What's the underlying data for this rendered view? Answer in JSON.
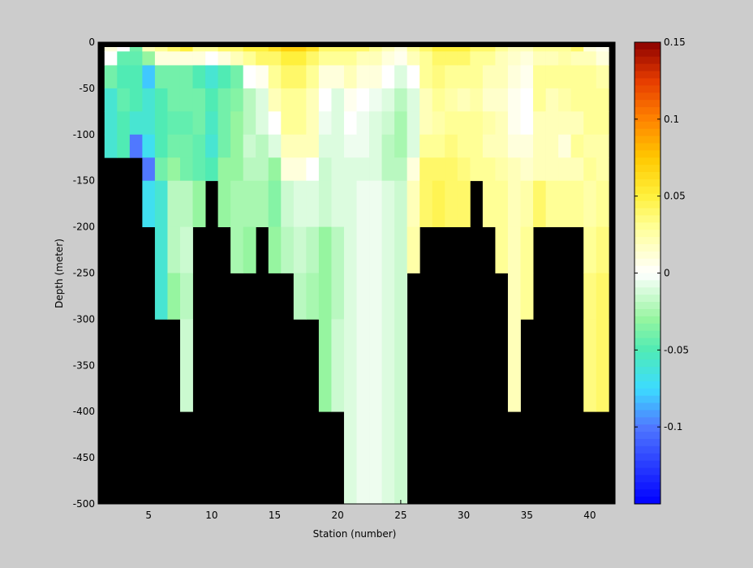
{
  "chart_data": {
    "type": "heatmap",
    "xlabel": "Station (number)",
    "ylabel": "Depth (meter)",
    "x_ticks": [
      5,
      10,
      15,
      20,
      25,
      30,
      35,
      40
    ],
    "y_ticks": [
      0,
      -50,
      -100,
      -150,
      -200,
      -250,
      -300,
      -350,
      -400,
      -450,
      -500
    ],
    "xlim": [
      1,
      42
    ],
    "ylim": [
      -500,
      0
    ],
    "colorbar": {
      "range": [
        -0.15,
        0.15
      ],
      "ticks": [
        "0.15",
        "0.1",
        "0.05",
        "0",
        "-0.05",
        "-0.1"
      ],
      "colormap": "blue-cyan-green-white-yellow-orange-red"
    },
    "no_data_color": "#000000",
    "stations": [
      2,
      3,
      4,
      5,
      6,
      7,
      8,
      9,
      10,
      11,
      12,
      13,
      14,
      15,
      16,
      17,
      18,
      19,
      20,
      21,
      22,
      23,
      24,
      25,
      26,
      27,
      28,
      29,
      30,
      31,
      32,
      33,
      34,
      35,
      36,
      37,
      38,
      39,
      40,
      41
    ],
    "station_max_depth": [
      -125,
      -125,
      -125,
      -200,
      -300,
      -300,
      -400,
      -200,
      -150,
      -200,
      -250,
      -250,
      -200,
      -250,
      -250,
      -300,
      -300,
      -400,
      -400,
      -500,
      -500,
      -500,
      -500,
      -500,
      -250,
      -200,
      -200,
      -200,
      -200,
      -150,
      -200,
      -250,
      -400,
      -300,
      -200,
      -200,
      -200,
      -200,
      -400,
      -400
    ],
    "depth_bins": [
      0,
      -10,
      -25,
      -50,
      -75,
      -100,
      -125,
      -150,
      -200,
      -250,
      -300,
      -400,
      -500
    ],
    "values": [
      [
        0.01,
        0.0,
        -0.04,
        -0.06,
        -0.06,
        -0.06,
        -0.075
      ],
      [
        0.0,
        -0.045,
        -0.05,
        -0.045,
        -0.05,
        -0.05,
        -0.1
      ],
      [
        -0.04,
        -0.045,
        -0.05,
        -0.05,
        -0.06,
        -0.1,
        -0.12
      ],
      [
        0.02,
        -0.03,
        -0.08,
        -0.06,
        -0.06,
        -0.07,
        -0.1,
        -0.07
      ],
      [
        0.03,
        0.01,
        -0.04,
        -0.05,
        -0.05,
        -0.05,
        -0.04,
        -0.06,
        -0.06,
        -0.06
      ],
      [
        0.04,
        0.01,
        -0.04,
        -0.04,
        -0.045,
        -0.04,
        -0.03,
        -0.02,
        -0.02,
        -0.03,
        -0.03
      ],
      [
        0.05,
        0.01,
        -0.04,
        -0.04,
        -0.045,
        -0.04,
        -0.04,
        -0.02,
        -0.015,
        -0.02,
        -0.015,
        -0.01
      ],
      [
        0.03,
        0.01,
        -0.05,
        -0.04,
        -0.04,
        -0.045,
        -0.045,
        -0.03,
        -0.02
      ],
      [
        0.03,
        0.0,
        -0.06,
        -0.05,
        -0.055,
        -0.06,
        -0.05,
        -0.035
      ],
      [
        0.04,
        0.01,
        -0.05,
        -0.04,
        -0.04,
        -0.04,
        -0.03,
        -0.03,
        -0.03
      ],
      [
        0.04,
        0.02,
        -0.04,
        -0.035,
        -0.03,
        -0.03,
        -0.03,
        -0.025,
        -0.025,
        -0.035
      ],
      [
        0.05,
        0.03,
        0.0,
        -0.02,
        -0.02,
        -0.015,
        -0.02,
        -0.025,
        -0.03,
        -0.04
      ],
      [
        0.05,
        0.04,
        0.005,
        -0.01,
        -0.01,
        -0.02,
        -0.02,
        -0.025,
        -0.03
      ],
      [
        0.06,
        0.04,
        0.03,
        0.02,
        0.0,
        -0.01,
        -0.03,
        -0.035,
        -0.03,
        -0.03
      ],
      [
        0.07,
        0.05,
        0.04,
        0.03,
        0.03,
        0.02,
        0.01,
        -0.015,
        -0.02,
        -0.015
      ],
      [
        0.07,
        0.05,
        0.04,
        0.03,
        0.03,
        0.02,
        0.01,
        -0.01,
        -0.015,
        -0.02,
        -0.02
      ],
      [
        0.06,
        0.04,
        0.03,
        0.02,
        0.02,
        0.02,
        0.0,
        -0.01,
        -0.02,
        -0.025,
        -0.025
      ],
      [
        0.04,
        0.03,
        0.01,
        0.0,
        -0.005,
        -0.01,
        -0.015,
        -0.015,
        -0.03,
        -0.03,
        -0.03,
        -0.02
      ],
      [
        0.04,
        0.03,
        0.01,
        -0.01,
        -0.01,
        -0.01,
        -0.01,
        -0.01,
        -0.02,
        -0.02,
        -0.015,
        -0.01
      ],
      [
        0.04,
        0.03,
        0.02,
        0.005,
        0.0,
        -0.005,
        -0.01,
        -0.01,
        -0.01,
        -0.01,
        -0.01,
        -0.01,
        -0.01
      ],
      [
        0.04,
        0.02,
        0.01,
        0.0,
        -0.005,
        -0.005,
        -0.01,
        -0.005,
        -0.005,
        -0.005,
        -0.005,
        -0.005,
        -0.005
      ],
      [
        0.03,
        0.02,
        0.01,
        -0.005,
        -0.01,
        -0.01,
        -0.01,
        -0.005,
        -0.005,
        -0.005,
        -0.005,
        -0.005,
        -0.005
      ],
      [
        0.02,
        0.01,
        0.0,
        -0.01,
        -0.015,
        -0.02,
        -0.02,
        -0.01,
        -0.01,
        -0.01,
        -0.01,
        -0.01,
        -0.01
      ],
      [
        0.01,
        0.005,
        -0.01,
        -0.02,
        -0.025,
        -0.025,
        -0.02,
        -0.015,
        -0.015,
        -0.015,
        -0.015,
        -0.015,
        -0.015
      ],
      [
        0.03,
        0.02,
        0.0,
        -0.01,
        -0.01,
        -0.01,
        0.01,
        0.02,
        0.025,
        0.02
      ],
      [
        0.04,
        0.03,
        0.03,
        0.02,
        0.02,
        0.03,
        0.04,
        0.04,
        0.04
      ],
      [
        0.05,
        0.04,
        0.035,
        0.03,
        0.025,
        0.03,
        0.04,
        0.045,
        0.04
      ],
      [
        0.05,
        0.04,
        0.03,
        0.025,
        0.03,
        0.035,
        0.04,
        0.04,
        0.04
      ],
      [
        0.05,
        0.04,
        0.03,
        0.02,
        0.03,
        0.03,
        0.035,
        0.04,
        0.04
      ],
      [
        0.04,
        0.03,
        0.03,
        0.025,
        0.03,
        0.03,
        0.03,
        0.035
      ],
      [
        0.04,
        0.03,
        0.02,
        0.015,
        0.025,
        0.02,
        0.03,
        0.03,
        0.03
      ],
      [
        0.03,
        0.02,
        0.02,
        0.015,
        0.02,
        0.02,
        0.025,
        0.03,
        0.03,
        0.03
      ],
      [
        0.02,
        0.015,
        0.01,
        0.005,
        0.005,
        0.01,
        0.02,
        0.02,
        0.02,
        0.02,
        0.02,
        0.02
      ],
      [
        0.02,
        0.01,
        0.005,
        0.0,
        0.0,
        0.01,
        0.015,
        0.025,
        0.03,
        0.03,
        0.03
      ],
      [
        0.03,
        0.02,
        0.03,
        0.03,
        0.02,
        0.02,
        0.02,
        0.04,
        0.04
      ],
      [
        0.03,
        0.02,
        0.03,
        0.02,
        0.02,
        0.02,
        0.02,
        0.03,
        0.035
      ],
      [
        0.03,
        0.025,
        0.03,
        0.025,
        0.02,
        0.01,
        0.02,
        0.03,
        0.035
      ],
      [
        0.04,
        0.02,
        0.03,
        0.03,
        0.02,
        0.03,
        0.02,
        0.03,
        0.03
      ],
      [
        0.01,
        0.02,
        0.03,
        0.03,
        0.03,
        0.025,
        0.03,
        0.025,
        0.03,
        0.035,
        0.035,
        0.035
      ],
      [
        0.005,
        0.01,
        0.025,
        0.03,
        0.03,
        0.025,
        0.025,
        0.03,
        0.035,
        0.04,
        0.04,
        0.04
      ]
    ]
  }
}
